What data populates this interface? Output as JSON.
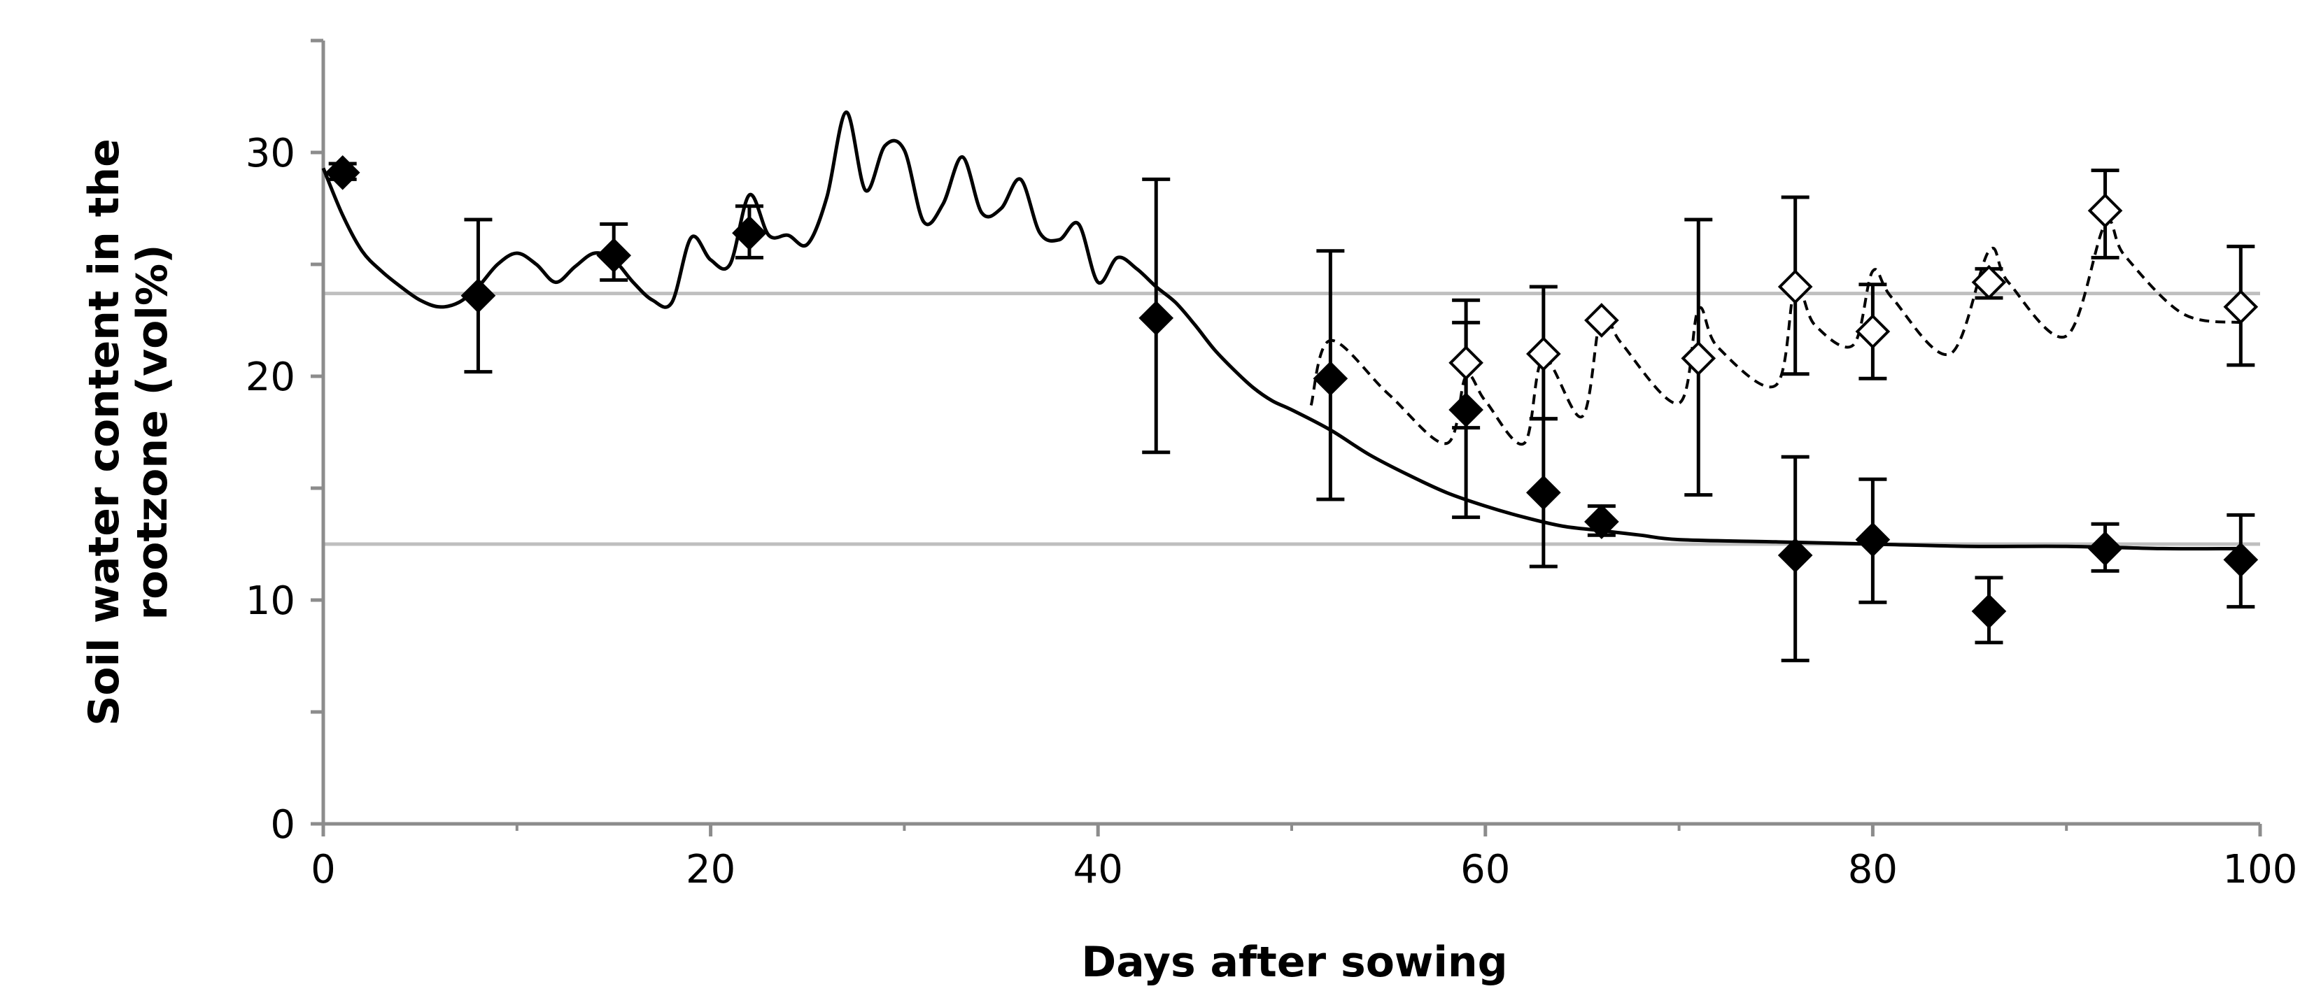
{
  "chart_data": {
    "type": "scatter",
    "xlabel": "Days after sowing",
    "ylabel": "Soil water content in the rootzone (vol%)",
    "xlim": [
      0,
      100
    ],
    "ylim": [
      0,
      35
    ],
    "x_ticks": [
      0,
      20,
      40,
      60,
      80,
      100
    ],
    "y_ticks": [
      0,
      10,
      20,
      30
    ],
    "x_tick_labels": [
      "0",
      "20",
      "40",
      "60",
      "80",
      "100"
    ],
    "y_tick_labels": [
      "0",
      "10",
      "20",
      "30"
    ],
    "grid": false,
    "reference_lines": [
      23.7,
      12.5
    ],
    "series": [
      {
        "style": "filled-diamond",
        "points": [
          {
            "x": 1,
            "y": 29.1,
            "err_low": 28.8,
            "err_high": 29.5
          },
          {
            "x": 8,
            "y": 23.6,
            "err_low": 20.2,
            "err_high": 27.0
          },
          {
            "x": 15,
            "y": 25.4,
            "err_low": 24.3,
            "err_high": 26.8
          },
          {
            "x": 22,
            "y": 26.4,
            "err_low": 25.3,
            "err_high": 27.6
          },
          {
            "x": 43,
            "y": 22.6,
            "err_low": 16.6,
            "err_high": 28.8
          },
          {
            "x": 52,
            "y": 19.9,
            "err_low": 14.5,
            "err_high": 25.6
          },
          {
            "x": 59,
            "y": 18.5,
            "err_low": 13.7,
            "err_high": 23.4
          },
          {
            "x": 63,
            "y": 14.8,
            "err_low": 11.5,
            "err_high": 18.1
          },
          {
            "x": 66,
            "y": 13.5,
            "err_low": 12.9,
            "err_high": 14.2
          },
          {
            "x": 76,
            "y": 12.0,
            "err_low": 7.3,
            "err_high": 16.4
          },
          {
            "x": 80,
            "y": 12.7,
            "err_low": 9.9,
            "err_high": 15.4
          },
          {
            "x": 86,
            "y": 9.5,
            "err_low": 8.1,
            "err_high": 11.0
          },
          {
            "x": 92,
            "y": 12.3,
            "err_low": 11.3,
            "err_high": 13.4
          },
          {
            "x": 99,
            "y": 11.8,
            "err_low": 9.7,
            "err_high": 13.8
          }
        ]
      },
      {
        "style": "open-diamond",
        "points": [
          {
            "x": 59,
            "y": 20.6,
            "err_low": 17.7,
            "err_high": 22.4
          },
          {
            "x": 63,
            "y": 21.0,
            "err_low": 18.1,
            "err_high": 24.0
          },
          {
            "x": 66,
            "y": 22.5,
            "err_low": null,
            "err_high": null
          },
          {
            "x": 71,
            "y": 20.8,
            "err_low": 14.7,
            "err_high": 27.0
          },
          {
            "x": 76,
            "y": 24.0,
            "err_low": 20.1,
            "err_high": 28.0
          },
          {
            "x": 80,
            "y": 22.0,
            "err_low": 19.9,
            "err_high": 24.1
          },
          {
            "x": 86,
            "y": 24.2,
            "err_low": 23.5,
            "err_high": 24.8
          },
          {
            "x": 92,
            "y": 27.4,
            "err_low": 25.3,
            "err_high": 29.2
          },
          {
            "x": 99,
            "y": 23.1,
            "err_low": 20.5,
            "err_high": 25.8
          }
        ]
      },
      {
        "style": "solid-line",
        "x": [
          0,
          1,
          2,
          3,
          4,
          5,
          6,
          7,
          8,
          9,
          10,
          11,
          12,
          13,
          14,
          15,
          16,
          17,
          18,
          19,
          20,
          21,
          22,
          23,
          24,
          25,
          26,
          27,
          28,
          29,
          30,
          31,
          32,
          33,
          34,
          35,
          36,
          37,
          38,
          39,
          40,
          41,
          42,
          43,
          44,
          45,
          46,
          47,
          48,
          49,
          50,
          52,
          54,
          56,
          58,
          60,
          62,
          64,
          66,
          68,
          70,
          75,
          80,
          85,
          90,
          95,
          99
        ],
        "y": [
          29.3,
          27.2,
          25.6,
          24.7,
          24.0,
          23.4,
          23.1,
          23.3,
          24.0,
          25.0,
          25.5,
          25.0,
          24.2,
          24.9,
          25.5,
          25.2,
          24.2,
          23.4,
          23.3,
          26.2,
          25.2,
          25.0,
          28.1,
          26.3,
          26.3,
          25.9,
          28.0,
          31.8,
          28.3,
          30.3,
          30.1,
          26.9,
          27.7,
          29.8,
          27.3,
          27.5,
          28.8,
          26.4,
          26.1,
          26.8,
          24.2,
          25.3,
          24.8,
          24.0,
          23.3,
          22.3,
          21.2,
          20.3,
          19.5,
          18.9,
          18.5,
          17.6,
          16.5,
          15.6,
          14.8,
          14.2,
          13.7,
          13.3,
          13.1,
          12.9,
          12.7,
          12.6,
          12.5,
          12.4,
          12.4,
          12.3,
          12.3
        ]
      },
      {
        "style": "dashed-line",
        "x": [
          51,
          52,
          55,
          58,
          59,
          60,
          62,
          63,
          65,
          66,
          67,
          70,
          71,
          72,
          75,
          76,
          77,
          79,
          80,
          81,
          84,
          86,
          87,
          90,
          92,
          93,
          96,
          99
        ],
        "y": [
          18.7,
          21.6,
          19.2,
          17.0,
          20.0,
          18.9,
          17.0,
          20.8,
          18.2,
          22.8,
          21.5,
          18.8,
          23.0,
          21.3,
          19.6,
          24.0,
          22.3,
          21.4,
          24.7,
          23.5,
          21.0,
          25.6,
          24.2,
          21.8,
          26.8,
          25.4,
          22.8,
          22.4
        ]
      }
    ]
  }
}
